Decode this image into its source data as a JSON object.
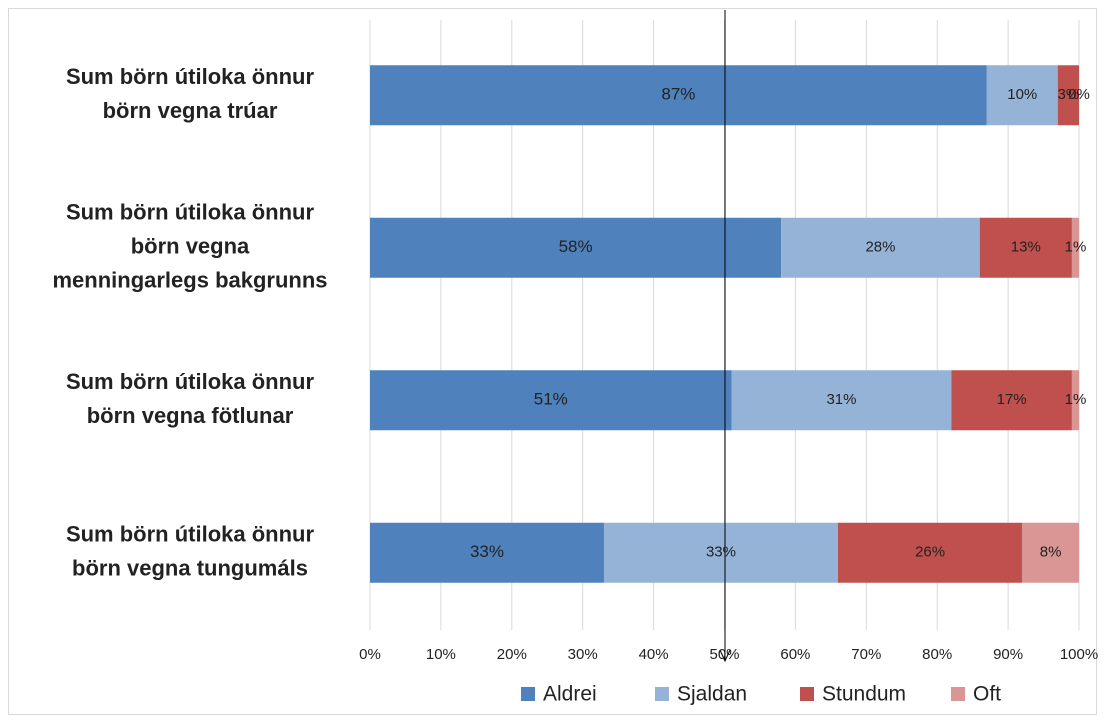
{
  "chart_data": {
    "type": "stacked_barh",
    "categories": [
      [
        "Sum börn útiloka önnur",
        "börn vegna trúar"
      ],
      [
        "Sum börn útiloka önnur",
        "börn vegna",
        "menningarlegs bakgrunns"
      ],
      [
        "Sum börn útiloka önnur",
        "börn vegna fötlunar"
      ],
      [
        "Sum börn útiloka önnur",
        "börn vegna tungumáls"
      ]
    ],
    "series": [
      {
        "name": "Aldrei",
        "color": "#4f81bd",
        "values": [
          87,
          58,
          51,
          33
        ],
        "value_labels": [
          "87%",
          "58%",
          "51%",
          "33%"
        ]
      },
      {
        "name": "Sjaldan",
        "color": "#95b3d7",
        "values": [
          10,
          28,
          31,
          33
        ],
        "value_labels": [
          "10%",
          "28%",
          "31%",
          "33%"
        ]
      },
      {
        "name": "Stundum",
        "color": "#c0504d",
        "values": [
          3,
          13,
          17,
          26
        ],
        "value_labels": [
          "3%",
          "13%",
          "17%",
          "26%"
        ]
      },
      {
        "name": "Oft",
        "color": "#d99694",
        "values": [
          0,
          1,
          1,
          8
        ],
        "value_labels": [
          "0%",
          "1%",
          "1%",
          "8%"
        ]
      }
    ],
    "xlim": [
      0,
      100
    ],
    "xticks": [
      {
        "value": 0,
        "label": "0%"
      },
      {
        "value": 10,
        "label": "10%"
      },
      {
        "value": 20,
        "label": "20%"
      },
      {
        "value": 30,
        "label": "30%"
      },
      {
        "value": 40,
        "label": "40%"
      },
      {
        "value": 50,
        "label": "50%"
      },
      {
        "value": 60,
        "label": "60%"
      },
      {
        "value": 70,
        "label": "70%"
      },
      {
        "value": 80,
        "label": "80%"
      },
      {
        "value": 90,
        "label": "90%"
      },
      {
        "value": 100,
        "label": "100%"
      }
    ],
    "grid": true,
    "legend": "bottom"
  }
}
